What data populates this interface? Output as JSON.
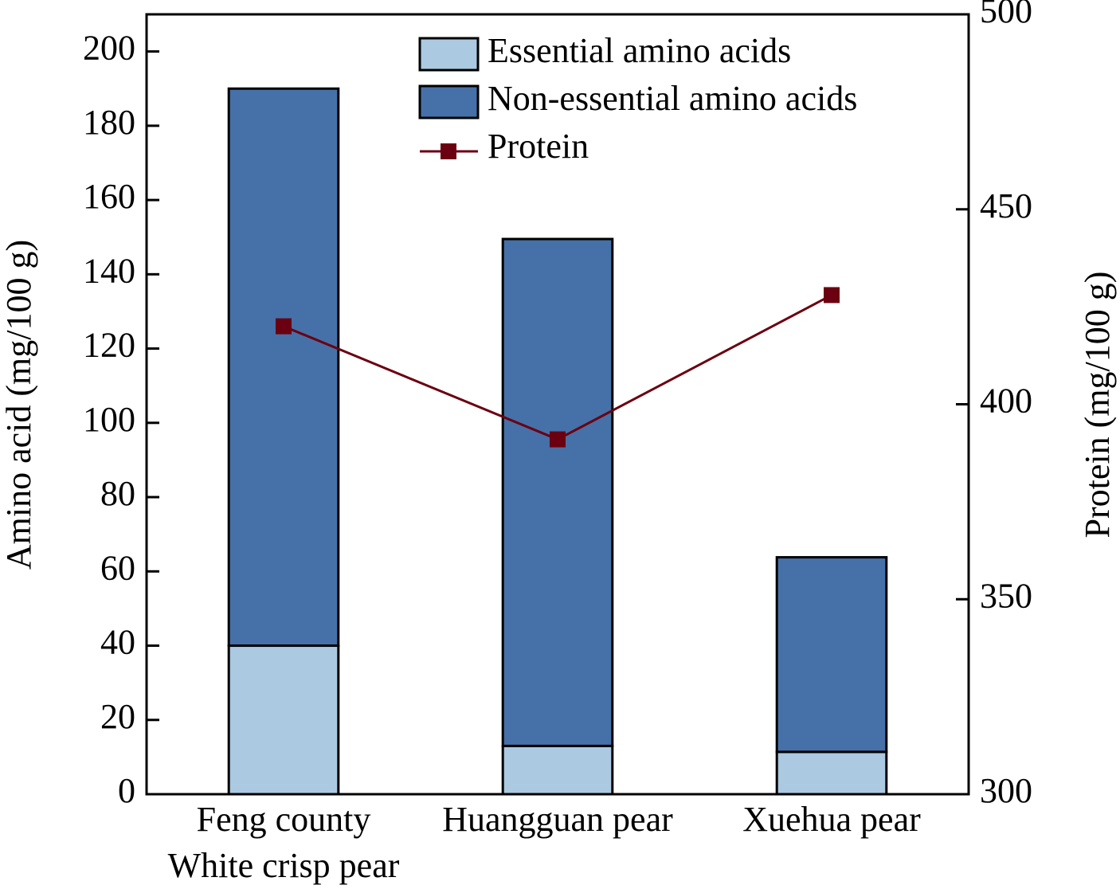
{
  "chart_data": {
    "type": "bar",
    "categories": [
      "Feng county\nWhite crisp pear",
      "Huangguan pear",
      "Xuehua pear"
    ],
    "stacked": true,
    "series": [
      {
        "name": "Essential amino acids",
        "color": "#abc9e1",
        "values": [
          40,
          13,
          11.4
        ]
      },
      {
        "name": "Non-essential amino acids",
        "color": "#4670a8",
        "values": [
          150,
          136.5,
          52.4
        ]
      },
      {
        "name": "Protein",
        "type": "line",
        "axis": "y2",
        "color": "#6b0010",
        "values": [
          420,
          391,
          428
        ]
      }
    ],
    "ylabel": "Amino acid (mg/100 g)",
    "y2label": "Protein (mg/100 g)",
    "ylim": [
      0,
      210
    ],
    "yticks": [
      0,
      20,
      40,
      60,
      80,
      100,
      120,
      140,
      160,
      180,
      200
    ],
    "y2lim": [
      300,
      500
    ],
    "y2ticks": [
      300,
      350,
      400,
      450,
      500
    ],
    "legend": "upper center"
  }
}
